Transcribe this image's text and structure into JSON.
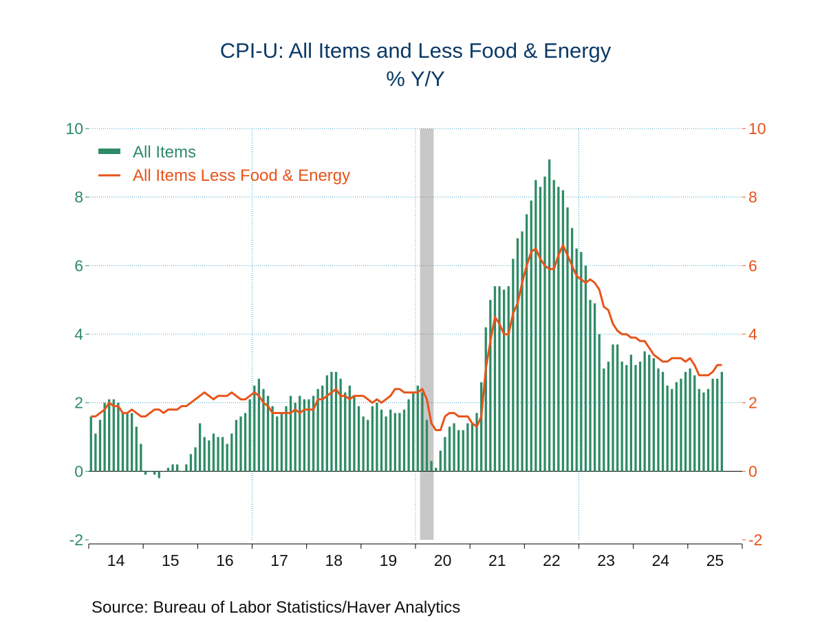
{
  "chart_data": {
    "type": "bar+line",
    "title": "CPI-U: All Items and Less Food & Energy",
    "subtitle": "% Y/Y",
    "source": "Source:  Bureau of Labor Statistics/Haver Analytics",
    "colors": {
      "bars": "#2e8b66",
      "line": "#e8531a",
      "left_axis": "#2e8b66",
      "right_axis": "#e8531a",
      "grid": "#3aa0c0",
      "recession": "#c8c8c8",
      "title": "#0b3a66"
    },
    "legend": {
      "position": "top-left",
      "entries": [
        "All Items",
        "All Items Less Food & Energy"
      ]
    },
    "y_left": {
      "min": -2,
      "max": 10,
      "ticks": [
        -2,
        0,
        2,
        4,
        6,
        8,
        10
      ],
      "tick_labels": [
        "-2",
        "0",
        "2",
        "4",
        "6",
        "8",
        "10"
      ]
    },
    "y_right": {
      "min": -2,
      "max": 10,
      "ticks": [
        -2,
        0,
        2,
        4,
        6,
        8,
        10
      ],
      "tick_labels": [
        "-2",
        "0",
        "2",
        "4",
        "6",
        "8",
        "10"
      ]
    },
    "x_axis": {
      "start_year": 2014,
      "start_month": 1,
      "end_year": 2025,
      "end_month": 7,
      "year_labels": [
        "14",
        "15",
        "16",
        "17",
        "18",
        "19",
        "20",
        "21",
        "22",
        "23",
        "24",
        "25"
      ]
    },
    "recession": {
      "start": "2020-02",
      "end": "2020-04"
    },
    "series": [
      {
        "name": "All Items",
        "kind": "bar",
        "values": [
          1.6,
          1.1,
          1.5,
          2.0,
          2.1,
          2.1,
          2.0,
          1.7,
          1.7,
          1.7,
          1.3,
          0.8,
          -0.1,
          0.0,
          -0.1,
          -0.2,
          0.0,
          0.1,
          0.2,
          0.2,
          0.0,
          0.2,
          0.5,
          0.7,
          1.4,
          1.0,
          0.9,
          1.1,
          1.0,
          1.0,
          0.8,
          1.1,
          1.5,
          1.6,
          1.7,
          2.1,
          2.5,
          2.7,
          2.4,
          2.2,
          1.9,
          1.6,
          1.7,
          1.9,
          2.2,
          2.0,
          2.2,
          2.1,
          2.1,
          2.2,
          2.4,
          2.5,
          2.8,
          2.9,
          2.9,
          2.7,
          2.3,
          2.5,
          2.2,
          1.9,
          1.6,
          1.5,
          1.9,
          2.0,
          1.8,
          1.6,
          1.8,
          1.7,
          1.7,
          1.8,
          2.1,
          2.3,
          2.5,
          2.3,
          1.5,
          0.3,
          0.1,
          0.6,
          1.0,
          1.3,
          1.4,
          1.2,
          1.2,
          1.4,
          1.4,
          1.7,
          2.6,
          4.2,
          5.0,
          5.4,
          5.4,
          5.3,
          5.4,
          6.2,
          6.8,
          7.0,
          7.5,
          7.9,
          8.5,
          8.3,
          8.6,
          9.1,
          8.5,
          8.3,
          8.2,
          7.7,
          7.1,
          6.5,
          6.4,
          6.0,
          5.0,
          4.9,
          4.0,
          3.0,
          3.2,
          3.7,
          3.7,
          3.2,
          3.1,
          3.4,
          3.1,
          3.2,
          3.5,
          3.4,
          3.3,
          3.0,
          2.9,
          2.5,
          2.4,
          2.6,
          2.7,
          2.9,
          3.0,
          2.8,
          2.4,
          2.3,
          2.4,
          2.7,
          2.7,
          2.9
        ]
      },
      {
        "name": "All Items Less Food & Energy",
        "kind": "line",
        "values": [
          1.6,
          1.6,
          1.7,
          1.8,
          2.0,
          1.9,
          1.9,
          1.7,
          1.7,
          1.8,
          1.7,
          1.6,
          1.6,
          1.7,
          1.8,
          1.8,
          1.7,
          1.8,
          1.8,
          1.8,
          1.9,
          1.9,
          2.0,
          2.1,
          2.2,
          2.3,
          2.2,
          2.1,
          2.2,
          2.2,
          2.2,
          2.3,
          2.2,
          2.1,
          2.1,
          2.2,
          2.3,
          2.2,
          2.0,
          1.9,
          1.7,
          1.7,
          1.7,
          1.7,
          1.7,
          1.8,
          1.7,
          1.8,
          1.8,
          1.8,
          2.1,
          2.1,
          2.2,
          2.3,
          2.4,
          2.2,
          2.2,
          2.1,
          2.2,
          2.2,
          2.2,
          2.1,
          2.0,
          2.1,
          2.0,
          2.1,
          2.2,
          2.4,
          2.4,
          2.3,
          2.3,
          2.3,
          2.3,
          2.4,
          2.1,
          1.4,
          1.2,
          1.2,
          1.6,
          1.7,
          1.7,
          1.6,
          1.6,
          1.6,
          1.4,
          1.3,
          1.6,
          3.0,
          3.8,
          4.5,
          4.3,
          4.0,
          4.0,
          4.6,
          4.9,
          5.5,
          6.0,
          6.4,
          6.5,
          6.2,
          6.0,
          5.9,
          5.9,
          6.3,
          6.6,
          6.3,
          6.0,
          5.7,
          5.6,
          5.5,
          5.6,
          5.5,
          5.3,
          4.8,
          4.7,
          4.3,
          4.1,
          4.0,
          4.0,
          3.9,
          3.9,
          3.8,
          3.8,
          3.6,
          3.4,
          3.3,
          3.2,
          3.2,
          3.3,
          3.3,
          3.3,
          3.2,
          3.3,
          3.1,
          2.8,
          2.8,
          2.8,
          2.9,
          3.1,
          3.1
        ]
      }
    ]
  }
}
